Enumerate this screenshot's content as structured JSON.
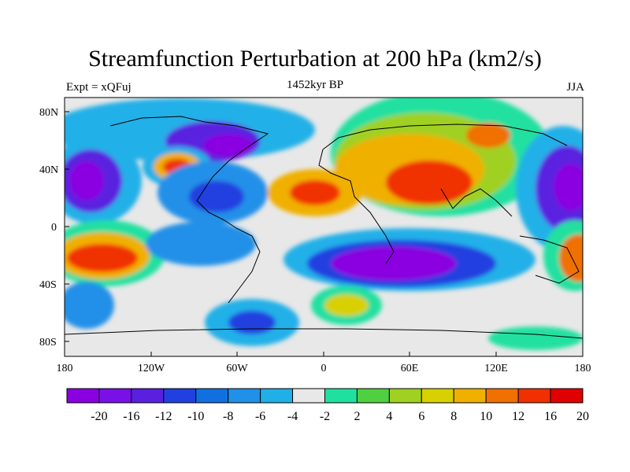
{
  "title": "Streamfunction Perturbation at 200 hPa (km2/s)",
  "subtitle_left": "Expt = xQFuj",
  "subtitle_center": "1452kyr BP",
  "subtitle_right": "JJA",
  "lat_ticks": [
    "80N",
    "40N",
    "0",
    "40S",
    "80S"
  ],
  "lon_ticks": [
    "180",
    "120W",
    "60W",
    "0",
    "60E",
    "120E",
    "180"
  ],
  "colorbar": {
    "colors": [
      "#8a00e0",
      "#7a10e8",
      "#5a20e0",
      "#2040e0",
      "#1070e0",
      "#2090e8",
      "#20b0e8",
      "#e8e8e8",
      "#20e0a0",
      "#50d040",
      "#a0d020",
      "#d8d000",
      "#f0b000",
      "#f07000",
      "#f03000",
      "#e00000"
    ],
    "labels": [
      "-20",
      "-16",
      "-12",
      "-10",
      "-8",
      "-6",
      "-4",
      "-2",
      "2",
      "4",
      "6",
      "8",
      "10",
      "12",
      "16",
      "20"
    ]
  }
}
